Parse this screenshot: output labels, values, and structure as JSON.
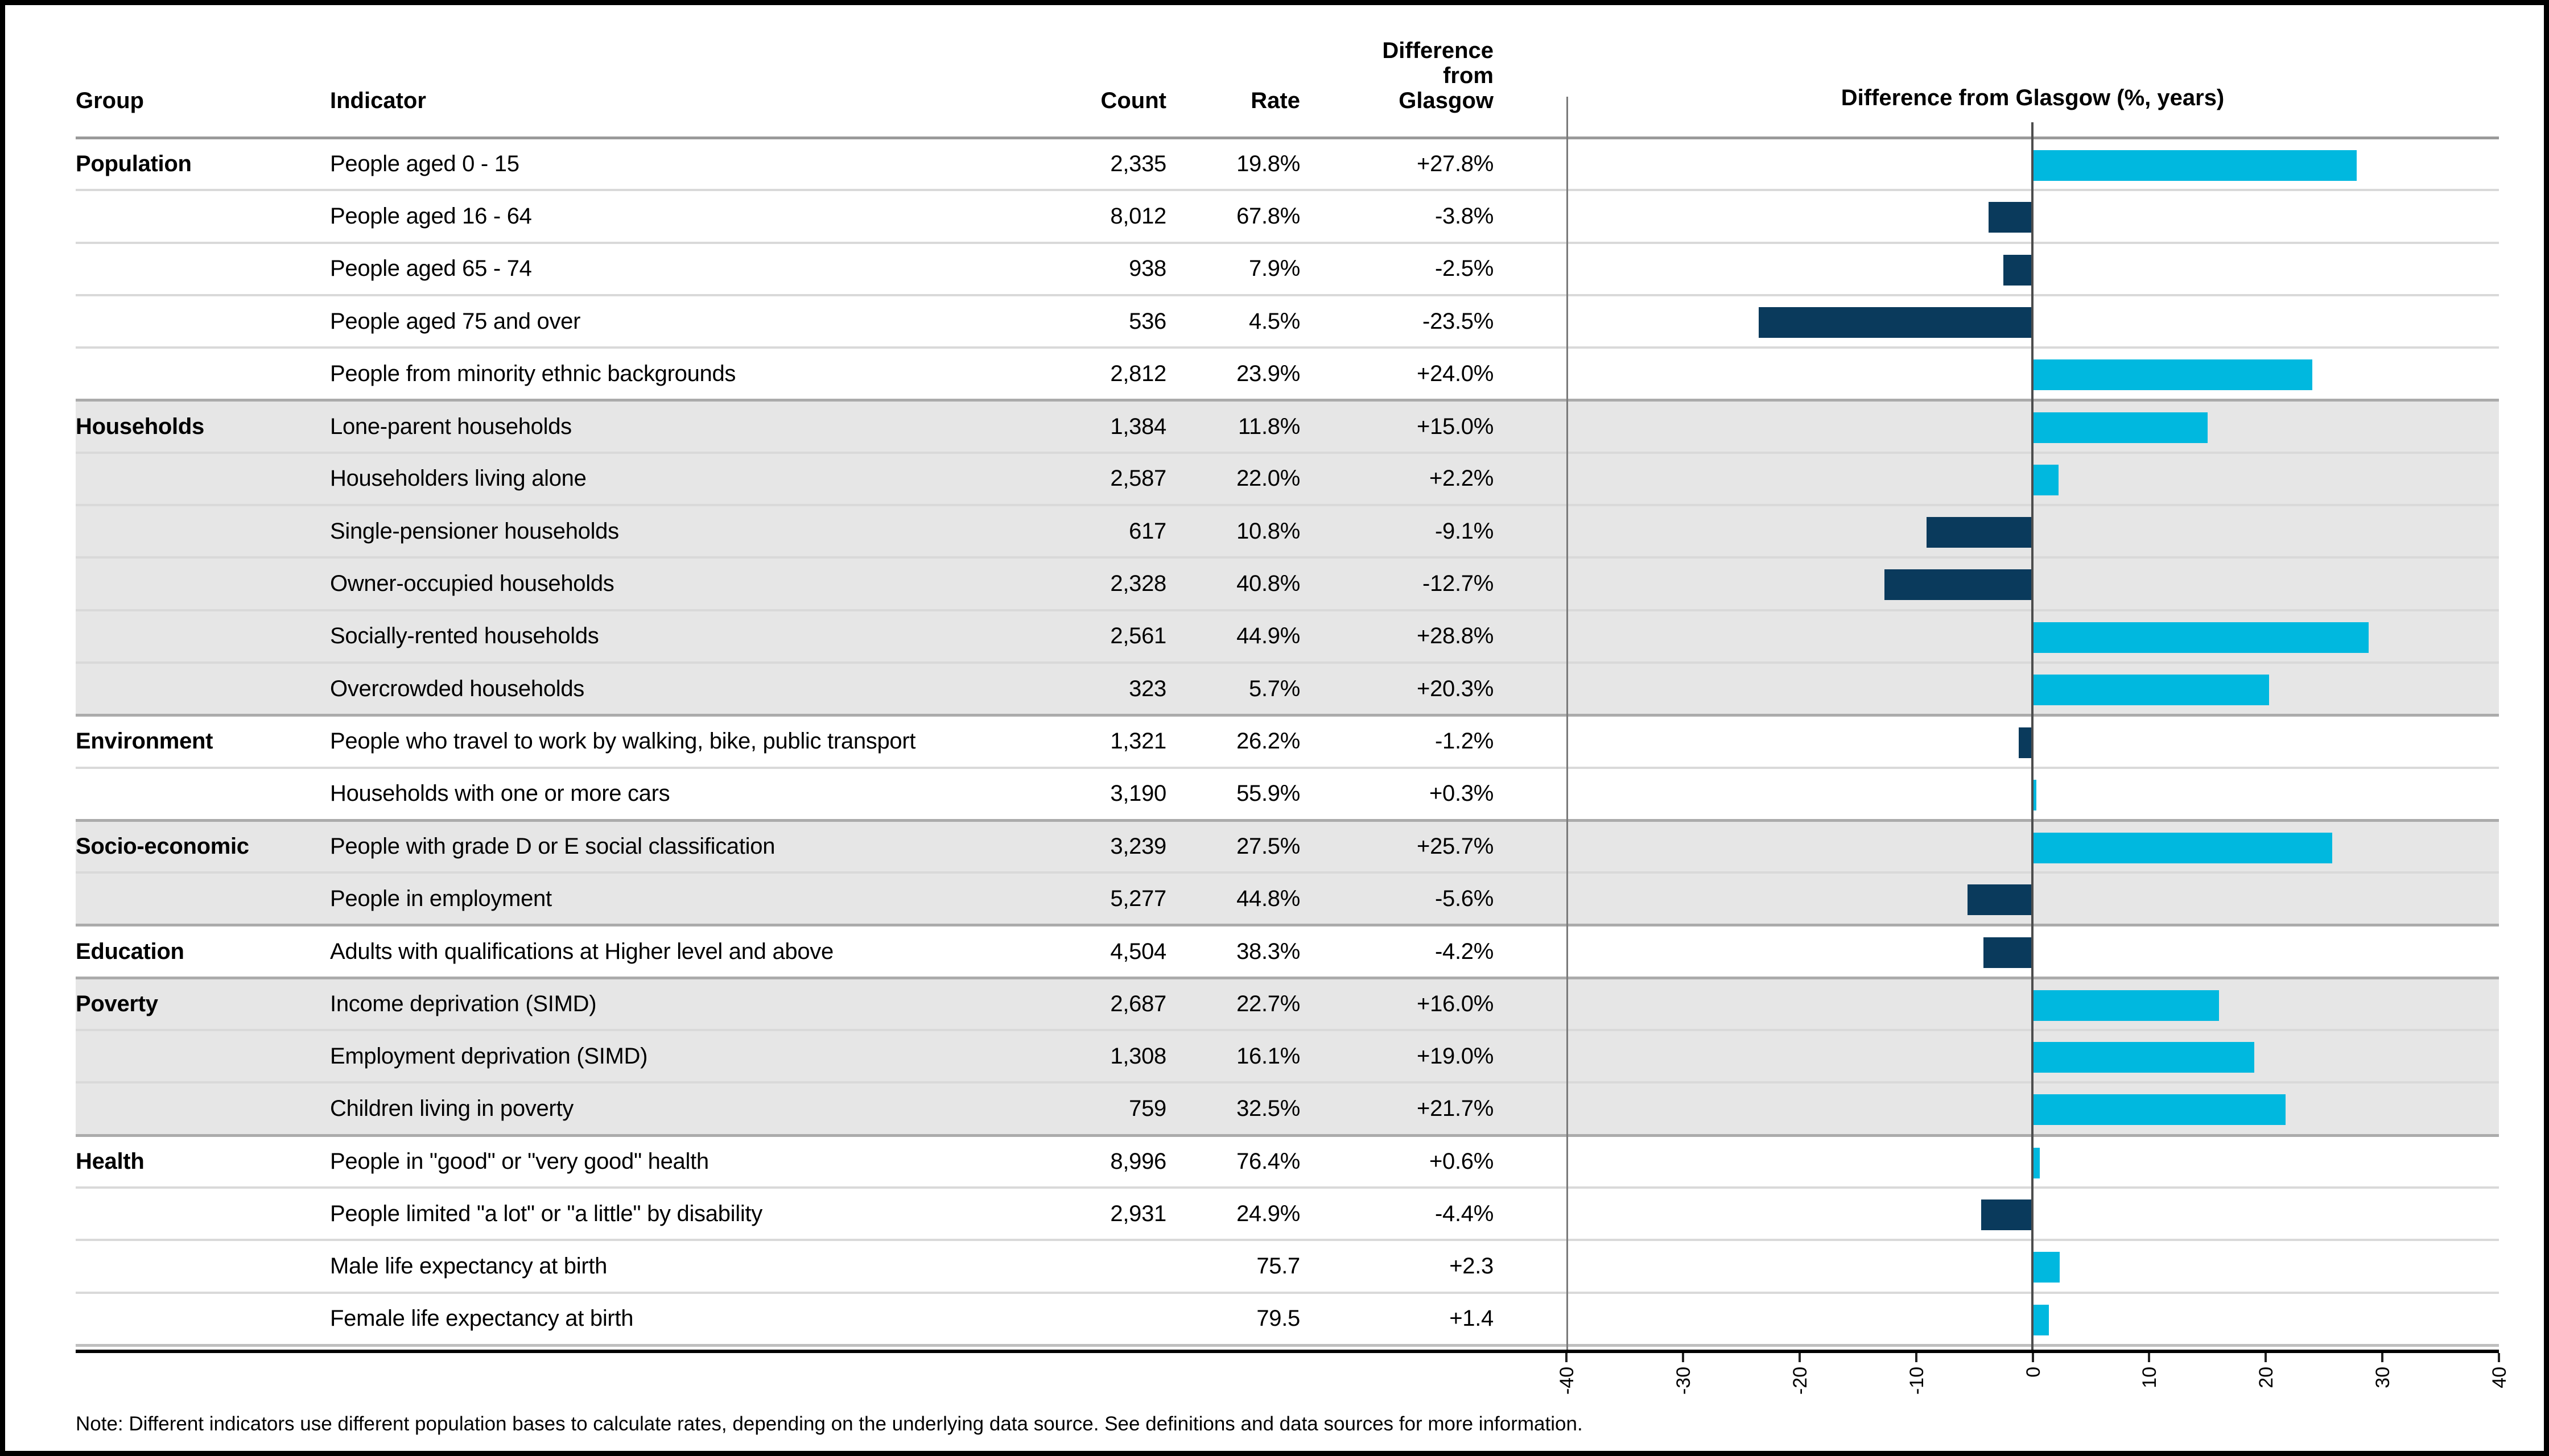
{
  "header": {
    "group": "Group",
    "indicator": "Indicator",
    "count": "Count",
    "rate": "Rate",
    "diff": "Difference\nfrom\nGlasgow"
  },
  "chart": {
    "title": "Difference from Glasgow (%, years)",
    "axis_ticks": [
      "-40",
      "-30",
      "-20",
      "-10",
      "0",
      "10",
      "20",
      "30",
      "40"
    ],
    "xlim": [
      -40,
      40
    ],
    "positive_color": "#00b8df",
    "negative_color": "#0a3a5c",
    "shaded_row_color": "#e6e6e6"
  },
  "table": {
    "rows": [
      {
        "group": "Population",
        "shaded": false,
        "group_start": true,
        "indicator": "People aged 0 - 15",
        "count": "2,335",
        "rate": "19.8%",
        "diff": "+27.8%",
        "value": 27.8
      },
      {
        "group": "",
        "shaded": false,
        "group_start": false,
        "indicator": "People aged 16 - 64",
        "count": "8,012",
        "rate": "67.8%",
        "diff": "-3.8%",
        "value": -3.8
      },
      {
        "group": "",
        "shaded": false,
        "group_start": false,
        "indicator": "People aged 65 - 74",
        "count": "938",
        "rate": "7.9%",
        "diff": "-2.5%",
        "value": -2.5
      },
      {
        "group": "",
        "shaded": false,
        "group_start": false,
        "indicator": "People aged 75 and over",
        "count": "536",
        "rate": "4.5%",
        "diff": "-23.5%",
        "value": -23.5
      },
      {
        "group": "",
        "shaded": false,
        "group_start": false,
        "indicator": "People from minority ethnic backgrounds",
        "count": "2,812",
        "rate": "23.9%",
        "diff": "+24.0%",
        "value": 24.0
      },
      {
        "group": "Households",
        "shaded": true,
        "group_start": true,
        "indicator": "Lone-parent households",
        "count": "1,384",
        "rate": "11.8%",
        "diff": "+15.0%",
        "value": 15.0
      },
      {
        "group": "",
        "shaded": true,
        "group_start": false,
        "indicator": "Householders living alone",
        "count": "2,587",
        "rate": "22.0%",
        "diff": "+2.2%",
        "value": 2.2
      },
      {
        "group": "",
        "shaded": true,
        "group_start": false,
        "indicator": "Single-pensioner households",
        "count": "617",
        "rate": "10.8%",
        "diff": "-9.1%",
        "value": -9.1
      },
      {
        "group": "",
        "shaded": true,
        "group_start": false,
        "indicator": "Owner-occupied households",
        "count": "2,328",
        "rate": "40.8%",
        "diff": "-12.7%",
        "value": -12.7
      },
      {
        "group": "",
        "shaded": true,
        "group_start": false,
        "indicator": "Socially-rented households",
        "count": "2,561",
        "rate": "44.9%",
        "diff": "+28.8%",
        "value": 28.8
      },
      {
        "group": "",
        "shaded": true,
        "group_start": false,
        "indicator": "Overcrowded households",
        "count": "323",
        "rate": "5.7%",
        "diff": "+20.3%",
        "value": 20.3
      },
      {
        "group": "Environment",
        "shaded": false,
        "group_start": true,
        "indicator": "People who travel to work by walking, bike, public transport",
        "count": "1,321",
        "rate": "26.2%",
        "diff": "-1.2%",
        "value": -1.2
      },
      {
        "group": "",
        "shaded": false,
        "group_start": false,
        "indicator": "Households with one or more cars",
        "count": "3,190",
        "rate": "55.9%",
        "diff": "+0.3%",
        "value": 0.3
      },
      {
        "group": "Socio-economic",
        "shaded": true,
        "group_start": true,
        "indicator": "People with grade D or E social classification",
        "count": "3,239",
        "rate": "27.5%",
        "diff": "+25.7%",
        "value": 25.7
      },
      {
        "group": "",
        "shaded": true,
        "group_start": false,
        "indicator": "People in employment",
        "count": "5,277",
        "rate": "44.8%",
        "diff": "-5.6%",
        "value": -5.6
      },
      {
        "group": "Education",
        "shaded": false,
        "group_start": true,
        "indicator": "Adults with qualifications at Higher level and above",
        "count": "4,504",
        "rate": "38.3%",
        "diff": "-4.2%",
        "value": -4.2
      },
      {
        "group": "Poverty",
        "shaded": true,
        "group_start": true,
        "indicator": "Income deprivation (SIMD)",
        "count": "2,687",
        "rate": "22.7%",
        "diff": "+16.0%",
        "value": 16.0
      },
      {
        "group": "",
        "shaded": true,
        "group_start": false,
        "indicator": "Employment deprivation (SIMD)",
        "count": "1,308",
        "rate": "16.1%",
        "diff": "+19.0%",
        "value": 19.0
      },
      {
        "group": "",
        "shaded": true,
        "group_start": false,
        "indicator": "Children living in poverty",
        "count": "759",
        "rate": "32.5%",
        "diff": "+21.7%",
        "value": 21.7
      },
      {
        "group": "Health",
        "shaded": false,
        "group_start": true,
        "indicator": "People in \"good\" or \"very good\" health",
        "count": "8,996",
        "rate": "76.4%",
        "diff": "+0.6%",
        "value": 0.6
      },
      {
        "group": "",
        "shaded": false,
        "group_start": false,
        "indicator": "People limited \"a lot\" or \"a little\" by disability",
        "count": "2,931",
        "rate": "24.9%",
        "diff": "-4.4%",
        "value": -4.4
      },
      {
        "group": "",
        "shaded": false,
        "group_start": false,
        "indicator": "Male life expectancy at birth",
        "count": "",
        "rate": "75.7",
        "diff": "+2.3",
        "value": 2.3
      },
      {
        "group": "",
        "shaded": false,
        "group_start": false,
        "indicator": "Female life expectancy at birth",
        "count": "",
        "rate": "79.5",
        "diff": "+1.4",
        "value": 1.4
      }
    ]
  },
  "note": "Note: Different indicators use different population bases to calculate rates, depending on the underlying data source. See definitions and data sources for more information.",
  "chart_data": {
    "type": "bar",
    "orientation": "horizontal",
    "title": "Difference from Glasgow (%, years)",
    "categories": [
      "People aged 0 - 15",
      "People aged 16 - 64",
      "People aged 65 - 74",
      "People aged 75 and over",
      "People from minority ethnic backgrounds",
      "Lone-parent households",
      "Householders living alone",
      "Single-pensioner households",
      "Owner-occupied households",
      "Socially-rented households",
      "Overcrowded households",
      "People who travel to work by walking, bike, public transport",
      "Households with one or more cars",
      "People with grade D or E social classification",
      "People in employment",
      "Adults with qualifications at Higher level and above",
      "Income deprivation (SIMD)",
      "Employment deprivation (SIMD)",
      "Children living in poverty",
      "People in \"good\" or \"very good\" health",
      "People limited \"a lot\" or \"a little\" by disability",
      "Male life expectancy at birth",
      "Female life expectancy at birth"
    ],
    "values": [
      27.8,
      -3.8,
      -2.5,
      -23.5,
      24.0,
      15.0,
      2.2,
      -9.1,
      -12.7,
      28.8,
      20.3,
      -1.2,
      0.3,
      25.7,
      -5.6,
      -4.2,
      16.0,
      19.0,
      21.7,
      0.6,
      -4.4,
      2.3,
      1.4
    ],
    "xlabel": "",
    "ylabel": "",
    "xlim": [
      -40,
      40
    ],
    "xticks": [
      -40,
      -30,
      -20,
      -10,
      0,
      10,
      20,
      30,
      40
    ],
    "grid": false,
    "legend": "none",
    "bar_color_positive": "#00b8df",
    "bar_color_negative": "#0a3a5c"
  }
}
